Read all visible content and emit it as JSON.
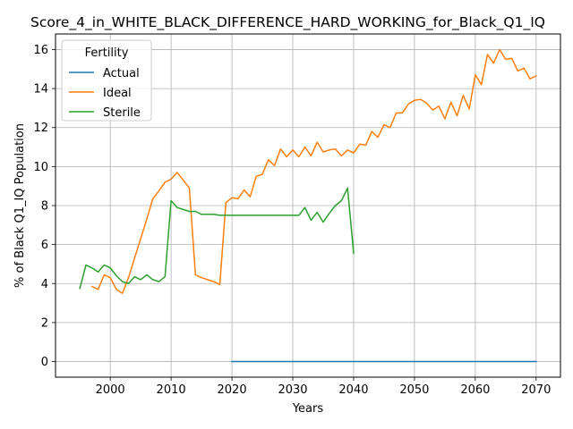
{
  "chart_data": {
    "type": "line",
    "title": "Score_4_in_WHITE_BLACK_DIFFERENCE_HARD_WORKING_for_Black_Q1_IQ",
    "xlabel": "Years",
    "ylabel": "% of Black Q1_IQ Population",
    "xlim": [
      1991,
      2074
    ],
    "ylim": [
      -0.8,
      16.8
    ],
    "x_ticks": [
      2000,
      2010,
      2020,
      2030,
      2040,
      2050,
      2060,
      2070
    ],
    "y_ticks": [
      0,
      2,
      4,
      6,
      8,
      10,
      12,
      14,
      16
    ],
    "grid": true,
    "legend": {
      "title": "Fertility",
      "placement": "top-left"
    },
    "series": [
      {
        "name": "Actual",
        "color": "#1f77b4",
        "points": [
          [
            2020,
            0
          ],
          [
            2030,
            0
          ],
          [
            2040,
            0
          ],
          [
            2050,
            0
          ],
          [
            2060,
            0
          ],
          [
            2070,
            0
          ]
        ]
      },
      {
        "name": "Ideal",
        "color": "#ff7f0e",
        "points": [
          [
            1997,
            3.85
          ],
          [
            1998,
            3.7
          ],
          [
            1999,
            4.45
          ],
          [
            2000,
            4.3
          ],
          [
            2001,
            3.7
          ],
          [
            2002,
            3.5
          ],
          [
            2003,
            4.3
          ],
          [
            2004,
            5.3
          ],
          [
            2005,
            6.3
          ],
          [
            2006,
            7.3
          ],
          [
            2007,
            8.35
          ],
          [
            2008,
            8.75
          ],
          [
            2009,
            9.2
          ],
          [
            2010,
            9.35
          ],
          [
            2011,
            9.7
          ],
          [
            2012,
            9.3
          ],
          [
            2013,
            8.9
          ],
          [
            2014,
            4.45
          ],
          [
            2015,
            4.3
          ],
          [
            2016,
            4.2
          ],
          [
            2017,
            4.1
          ],
          [
            2018,
            3.95
          ],
          [
            2019,
            8.15
          ],
          [
            2020,
            8.4
          ],
          [
            2021,
            8.35
          ],
          [
            2022,
            8.8
          ],
          [
            2023,
            8.45
          ],
          [
            2024,
            9.5
          ],
          [
            2025,
            9.6
          ],
          [
            2026,
            10.35
          ],
          [
            2027,
            10.05
          ],
          [
            2028,
            10.9
          ],
          [
            2029,
            10.5
          ],
          [
            2030,
            10.85
          ],
          [
            2031,
            10.5
          ],
          [
            2032,
            11.0
          ],
          [
            2033,
            10.55
          ],
          [
            2034,
            11.25
          ],
          [
            2035,
            10.75
          ],
          [
            2036,
            10.85
          ],
          [
            2037,
            10.9
          ],
          [
            2038,
            10.55
          ],
          [
            2039,
            10.85
          ],
          [
            2040,
            10.7
          ],
          [
            2041,
            11.15
          ],
          [
            2042,
            11.1
          ],
          [
            2043,
            11.8
          ],
          [
            2044,
            11.5
          ],
          [
            2045,
            12.15
          ],
          [
            2046,
            12.0
          ],
          [
            2047,
            12.75
          ],
          [
            2048,
            12.75
          ],
          [
            2049,
            13.2
          ],
          [
            2050,
            13.4
          ],
          [
            2051,
            13.45
          ],
          [
            2052,
            13.25
          ],
          [
            2053,
            12.9
          ],
          [
            2054,
            13.1
          ],
          [
            2055,
            12.45
          ],
          [
            2056,
            13.3
          ],
          [
            2057,
            12.6
          ],
          [
            2058,
            13.65
          ],
          [
            2059,
            12.95
          ],
          [
            2060,
            14.7
          ],
          [
            2061,
            14.2
          ],
          [
            2062,
            15.75
          ],
          [
            2063,
            15.3
          ],
          [
            2064,
            16.0
          ],
          [
            2065,
            15.5
          ],
          [
            2066,
            15.55
          ],
          [
            2067,
            14.9
          ],
          [
            2068,
            15.05
          ],
          [
            2069,
            14.5
          ],
          [
            2070,
            14.65
          ]
        ]
      },
      {
        "name": "Sterile",
        "color": "#2ca02c",
        "points": [
          [
            1995,
            3.75
          ],
          [
            1996,
            4.95
          ],
          [
            1997,
            4.8
          ],
          [
            1998,
            4.6
          ],
          [
            1999,
            4.95
          ],
          [
            2000,
            4.8
          ],
          [
            2001,
            4.4
          ],
          [
            2002,
            4.1
          ],
          [
            2003,
            4.0
          ],
          [
            2004,
            4.35
          ],
          [
            2005,
            4.2
          ],
          [
            2006,
            4.45
          ],
          [
            2007,
            4.2
          ],
          [
            2008,
            4.1
          ],
          [
            2009,
            4.35
          ],
          [
            2010,
            8.25
          ],
          [
            2011,
            7.9
          ],
          [
            2012,
            7.8
          ],
          [
            2013,
            7.7
          ],
          [
            2014,
            7.7
          ],
          [
            2015,
            7.55
          ],
          [
            2016,
            7.55
          ],
          [
            2017,
            7.55
          ],
          [
            2018,
            7.5
          ],
          [
            2019,
            7.5
          ],
          [
            2020,
            7.5
          ],
          [
            2021,
            7.5
          ],
          [
            2022,
            7.5
          ],
          [
            2023,
            7.5
          ],
          [
            2024,
            7.5
          ],
          [
            2025,
            7.5
          ],
          [
            2026,
            7.5
          ],
          [
            2027,
            7.5
          ],
          [
            2028,
            7.5
          ],
          [
            2029,
            7.5
          ],
          [
            2030,
            7.5
          ],
          [
            2031,
            7.5
          ],
          [
            2032,
            7.9
          ],
          [
            2033,
            7.25
          ],
          [
            2034,
            7.65
          ],
          [
            2035,
            7.15
          ],
          [
            2036,
            7.6
          ],
          [
            2037,
            8.0
          ],
          [
            2038,
            8.25
          ],
          [
            2039,
            8.9
          ],
          [
            2040,
            5.55
          ]
        ]
      }
    ]
  }
}
